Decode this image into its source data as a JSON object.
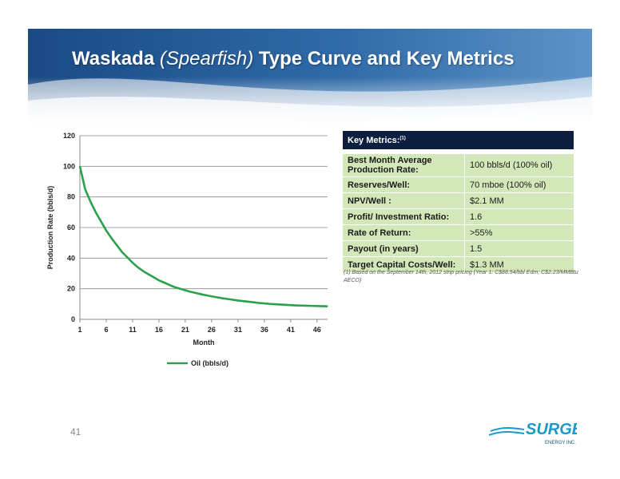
{
  "slide": {
    "title_part1": "Waskada ",
    "title_part2": "(Spearfish)",
    "title_part3": " Type Curve and Key Metrics",
    "page_number": "41",
    "brand_colors": {
      "navy": "#0c1f3f",
      "green_cell": "#d3e8b9",
      "curve_green": "#2aa14b",
      "banner_blue": "#1e4e8c"
    }
  },
  "metrics": {
    "header": "Key Metrics:",
    "header_note": "(1)",
    "rows": [
      {
        "label": "Best Month Average Production Rate:",
        "value": "100 bbls/d (100% oil)"
      },
      {
        "label": "Reserves/Well:",
        "value": "70 mboe (100% oil)"
      },
      {
        "label": "NPV/Well :",
        "value": "$2.1 MM"
      },
      {
        "label": "Profit/ Investment Ratio:",
        "value": "1.6"
      },
      {
        "label": "Rate of Return:",
        "value": ">55%"
      },
      {
        "label": "Payout (in years)",
        "value": "1.5"
      },
      {
        "label": "Target Capital Costs/Well:",
        "value": "$1.3 MM"
      }
    ],
    "footnote": "(1)  Based on the September 14th, 2012 strip  pricing (Year 1: C$88.54/bbl Edm; C$2.23/MMBtu AECO)"
  },
  "logo": {
    "name": "SURGE",
    "sub": "ENERGY INC."
  },
  "chart_data": {
    "type": "line",
    "title": "",
    "xlabel": "Month",
    "ylabel": "Production Rate (bbls/d)",
    "ylim": [
      0,
      120
    ],
    "xlim": [
      1,
      48
    ],
    "yticks": [
      0,
      20,
      40,
      60,
      80,
      100,
      120
    ],
    "xticks": [
      1,
      6,
      11,
      16,
      21,
      26,
      31,
      36,
      41,
      46
    ],
    "grid": true,
    "legend_position": "bottom",
    "series": [
      {
        "name": "Oil (bbls/d)",
        "color": "#2aa14b",
        "x": [
          1,
          2,
          3,
          4,
          5,
          6,
          7,
          8,
          9,
          10,
          11,
          12,
          13,
          14,
          15,
          16,
          17,
          18,
          19,
          20,
          21,
          22,
          23,
          24,
          25,
          26,
          27,
          28,
          29,
          30,
          31,
          32,
          33,
          34,
          35,
          36,
          37,
          38,
          39,
          40,
          41,
          42,
          43,
          44,
          45,
          46,
          47,
          48
        ],
        "values": [
          100,
          85,
          77,
          70,
          64,
          58,
          53,
          48.5,
          44,
          40.5,
          37,
          34,
          31.5,
          29.5,
          27.5,
          25.5,
          24,
          22.5,
          21,
          20,
          19,
          18,
          17.2,
          16.4,
          15.7,
          15,
          14.4,
          13.8,
          13.3,
          12.8,
          12.3,
          11.9,
          11.5,
          11.1,
          10.7,
          10.4,
          10.1,
          9.9,
          9.7,
          9.5,
          9.3,
          9.1,
          9,
          8.9,
          8.8,
          8.7,
          8.6,
          8.5
        ]
      }
    ]
  }
}
